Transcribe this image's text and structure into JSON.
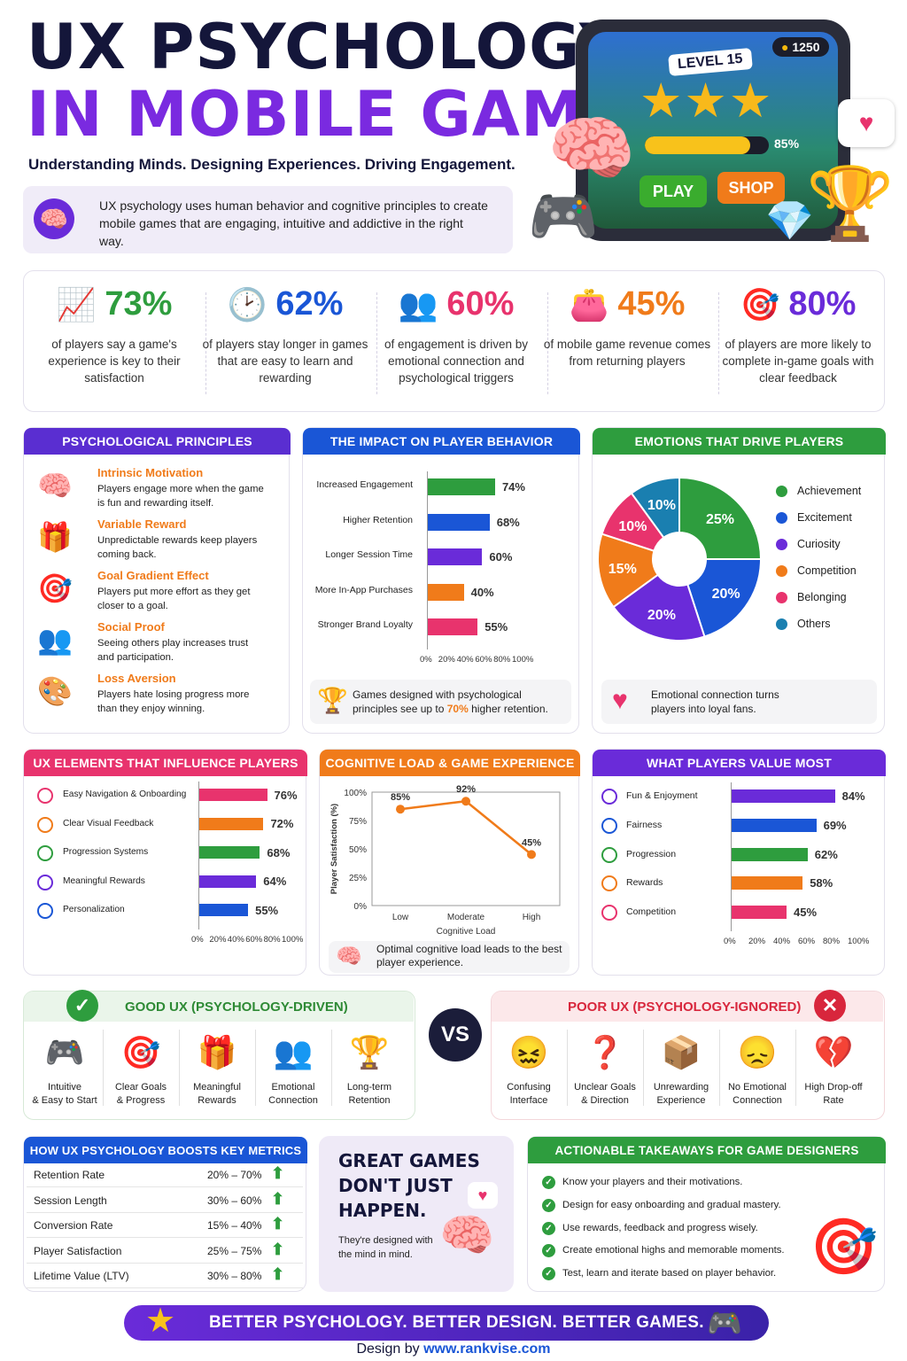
{
  "header": {
    "title_line1": "UX PSYCHOLOGY",
    "title_line2": "IN MOBILE GAMES",
    "tagline": "Understanding Minds. Designing Experiences. Driving Engagement.",
    "intro": "UX psychology uses human behavior and cognitive principles to create mobile games that are engaging, intuitive and addictive in the right way."
  },
  "game_screen": {
    "level": "LEVEL 15",
    "coins": "1250",
    "progress_label": "85%",
    "progress": 0.85,
    "play_label": "PLAY",
    "shop_label": "SHOP"
  },
  "stats": [
    {
      "value": "73%",
      "text": "of players say a game's experience is key to their satisfaction",
      "color": "#2e9d3e",
      "icon": "growth-chart-icon"
    },
    {
      "value": "62%",
      "text": "of players stay longer in games that are easy to learn and rewarding",
      "color": "#1a56d6",
      "icon": "clock-icon"
    },
    {
      "value": "60%",
      "text": "of engagement is driven by emotional connection and psychological triggers",
      "color": "#e8336d",
      "icon": "people-icon"
    },
    {
      "value": "45%",
      "text": "of mobile game revenue comes from returning players",
      "color": "#f07b1a",
      "icon": "wallet-icon"
    },
    {
      "value": "80%",
      "text": "of players are more likely to complete in-game goals with clear feedback",
      "color": "#6a2bd9",
      "icon": "target-icon"
    }
  ],
  "principles": {
    "heading": "PSYCHOLOGICAL PRINCIPLES",
    "items": [
      {
        "title": "Intrinsic Motivation",
        "desc": "Players engage more when the game is fun and rewarding itself.",
        "icon": "brain-head-icon"
      },
      {
        "title": "Variable Reward",
        "desc": "Unpredictable rewards keep players coming back.",
        "icon": "gift-icon"
      },
      {
        "title": "Goal Gradient Effect",
        "desc": "Players put more effort as they get closer to a goal.",
        "icon": "target-icon"
      },
      {
        "title": "Social Proof",
        "desc": "Seeing others play increases trust and participation.",
        "icon": "people-icon"
      },
      {
        "title": "Loss Aversion",
        "desc": "Players hate losing progress more than they enjoy winning.",
        "icon": "palette-icon"
      }
    ]
  },
  "impact": {
    "heading": "THE IMPACT ON PLAYER BEHAVIOR",
    "note_pre": "Games designed with psychological principles see up to",
    "note_highlight": "70%",
    "note_post": "higher retention."
  },
  "emotions": {
    "heading": "EMOTIONS THAT DRIVE PLAYERS",
    "note": "Emotional connection turns players into loyal fans."
  },
  "ux_elements": {
    "heading": "UX ELEMENTS THAT INFLUENCE PLAYERS"
  },
  "cognitive": {
    "heading": "COGNITIVE LOAD & GAME EXPERIENCE",
    "note": "Optimal cognitive load leads to the best player experience."
  },
  "value": {
    "heading": "WHAT PLAYERS VALUE MOST"
  },
  "chart_data": [
    {
      "type": "bar",
      "orientation": "horizontal",
      "title": "THE IMPACT ON PLAYER BEHAVIOR",
      "categories": [
        "Increased Engagement",
        "Higher Retention",
        "Longer Session Time",
        "More In-App Purchases",
        "Stronger Brand Loyalty"
      ],
      "values": [
        74,
        68,
        60,
        40,
        55
      ],
      "value_labels": [
        "74%",
        "68%",
        "60%",
        "40%",
        "55%"
      ],
      "colors": [
        "#2e9d3e",
        "#1a56d6",
        "#6a2bd9",
        "#f07b1a",
        "#e8336d"
      ],
      "xlim": [
        0,
        100
      ],
      "ticks": [
        "0%",
        "20%",
        "40%",
        "60%",
        "80%",
        "100%"
      ]
    },
    {
      "type": "pie",
      "donut": true,
      "title": "EMOTIONS THAT DRIVE PLAYERS",
      "categories": [
        "Achievement",
        "Excitement",
        "Curiosity",
        "Competition",
        "Belonging",
        "Others"
      ],
      "values": [
        25,
        20,
        20,
        15,
        10,
        10
      ],
      "value_labels": [
        "25%",
        "20%",
        "20%",
        "15%",
        "10%",
        "10%"
      ],
      "colors": [
        "#2e9d3e",
        "#1a56d6",
        "#6a2bd9",
        "#f07b1a",
        "#e8336d",
        "#1a7fb0"
      ],
      "legend": "right"
    },
    {
      "type": "bar",
      "orientation": "horizontal",
      "title": "UX ELEMENTS THAT INFLUENCE PLAYERS",
      "categories": [
        "Easy Navigation & Onboarding",
        "Clear Visual Feedback",
        "Progression Systems",
        "Meaningful Rewards",
        "Personalization"
      ],
      "values": [
        76,
        72,
        68,
        64,
        55
      ],
      "value_labels": [
        "76%",
        "72%",
        "68%",
        "64%",
        "55%"
      ],
      "colors": [
        "#e8336d",
        "#f07b1a",
        "#2e9d3e",
        "#6a2bd9",
        "#1a56d6"
      ],
      "icons": [
        "compass-icon",
        "feedback-icon",
        "progress-icon",
        "gift-icon",
        "people-icon"
      ],
      "xlim": [
        0,
        100
      ],
      "ticks": [
        "0%",
        "20%",
        "40%",
        "60%",
        "80%",
        "100%"
      ]
    },
    {
      "type": "line",
      "title": "COGNITIVE LOAD & GAME EXPERIENCE",
      "x": [
        "Low",
        "Moderate",
        "High"
      ],
      "y": [
        85,
        92,
        45
      ],
      "value_labels": [
        "85%",
        "92%",
        "45%"
      ],
      "xlabel": "Cognitive Load",
      "ylabel": "Player Satisfaction (%)",
      "ylim": [
        0,
        100
      ],
      "yticks": [
        "0%",
        "25%",
        "50%",
        "75%",
        "100%"
      ],
      "color": "#f07b1a"
    },
    {
      "type": "bar",
      "orientation": "horizontal",
      "title": "WHAT PLAYERS VALUE MOST",
      "categories": [
        "Fun & Enjoyment",
        "Fairness",
        "Progression",
        "Rewards",
        "Competition"
      ],
      "values": [
        84,
        69,
        62,
        58,
        45
      ],
      "value_labels": [
        "84%",
        "69%",
        "62%",
        "58%",
        "45%"
      ],
      "colors": [
        "#6a2bd9",
        "#1a56d6",
        "#2e9d3e",
        "#f07b1a",
        "#e8336d"
      ],
      "icons": [
        "controller-icon",
        "person-icon",
        "arrow-up-icon",
        "gift-icon",
        "trophy-icon"
      ],
      "xlim": [
        0,
        100
      ],
      "ticks": [
        "0%",
        "20%",
        "40%",
        "60%",
        "80%",
        "100%"
      ]
    }
  ],
  "comparison": {
    "good_heading": "GOOD UX (PSYCHOLOGY-DRIVEN)",
    "poor_heading": "POOR UX (PSYCHOLOGY-IGNORED)",
    "vs": "VS",
    "good_items": [
      {
        "label": "Intuitive\n& Easy to Start",
        "icon": "controller-icon",
        "glyph": "🎮"
      },
      {
        "label": "Clear Goals\n& Progress",
        "icon": "target-icon",
        "glyph": "🎯"
      },
      {
        "label": "Meaningful\nRewards",
        "icon": "gift-icon",
        "glyph": "🎁"
      },
      {
        "label": "Emotional\nConnection",
        "icon": "people-icon",
        "glyph": "👥"
      },
      {
        "label": "Long-term\nRetention",
        "icon": "trophy-icon",
        "glyph": "🏆"
      }
    ],
    "poor_items": [
      {
        "label": "Confusing\nInterface",
        "icon": "confused-face-icon",
        "glyph": "😖"
      },
      {
        "label": "Unclear Goals\n& Direction",
        "icon": "question-icon",
        "glyph": "❓"
      },
      {
        "label": "Unrewarding\nExperience",
        "icon": "empty-box-icon",
        "glyph": "📦"
      },
      {
        "label": "No Emotional\nConnection",
        "icon": "sad-face-icon",
        "glyph": "😞"
      },
      {
        "label": "High Drop-off\nRate",
        "icon": "broken-heart-icon",
        "glyph": "💔"
      }
    ]
  },
  "metrics": {
    "heading": "HOW UX PSYCHOLOGY BOOSTS KEY METRICS",
    "rows": [
      {
        "name": "Retention Rate",
        "range": "20% – 70%"
      },
      {
        "name": "Session Length",
        "range": "30% – 60%"
      },
      {
        "name": "Conversion Rate",
        "range": "15% – 40%"
      },
      {
        "name": "Player Satisfaction",
        "range": "25% – 75%"
      },
      {
        "name": "Lifetime Value (LTV)",
        "range": "30% – 80%"
      }
    ]
  },
  "quote": {
    "line1": "GREAT GAMES",
    "line2": "DON'T JUST",
    "line3": "HAPPEN.",
    "sub": "They're designed with the mind in mind."
  },
  "takeaways": {
    "heading": "ACTIONABLE TAKEAWAYS FOR GAME DESIGNERS",
    "items": [
      "Know your players and their motivations.",
      "Design for easy onboarding and gradual mastery.",
      "Use rewards, feedback and progress wisely.",
      "Create emotional highs and memorable moments.",
      "Test, learn and iterate based on player behavior."
    ]
  },
  "footer": {
    "banner": "BETTER PSYCHOLOGY. BETTER DESIGN. BETTER GAMES.",
    "credit_pre": "Design by",
    "credit_url": "www.rankvise.com"
  }
}
